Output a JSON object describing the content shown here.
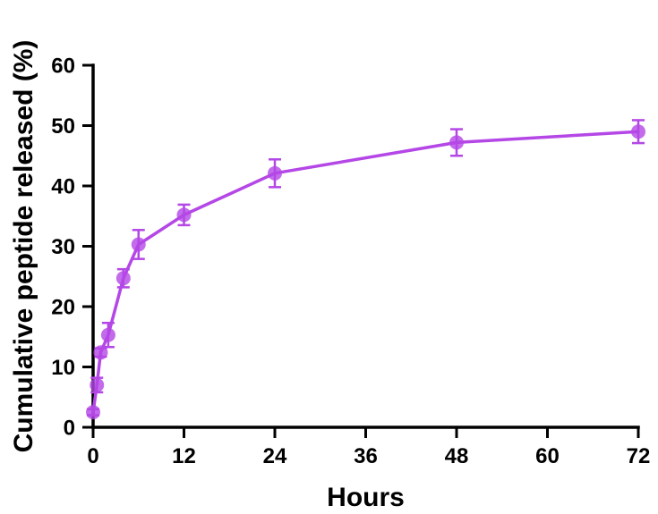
{
  "chart_data": {
    "type": "line",
    "title": "",
    "xlabel": "Hours",
    "ylabel": "Cumulative peptide released (%)",
    "xlim": [
      0,
      72
    ],
    "ylim": [
      0,
      60
    ],
    "x_ticks": [
      0,
      12,
      24,
      36,
      48,
      60,
      72
    ],
    "y_ticks": [
      0,
      10,
      20,
      30,
      40,
      50,
      60
    ],
    "grid": false,
    "legend": "none",
    "series": [
      {
        "color": "#b447e6",
        "x": [
          0,
          0.5,
          1,
          2,
          4,
          6,
          12,
          24,
          48,
          72
        ],
        "values": [
          2.5,
          7.0,
          12.4,
          15.3,
          24.7,
          30.3,
          35.2,
          42.1,
          47.2,
          49.0
        ],
        "error": [
          0.5,
          1.2,
          0.7,
          2.0,
          1.5,
          2.4,
          1.7,
          2.3,
          2.2,
          1.9
        ]
      }
    ]
  }
}
